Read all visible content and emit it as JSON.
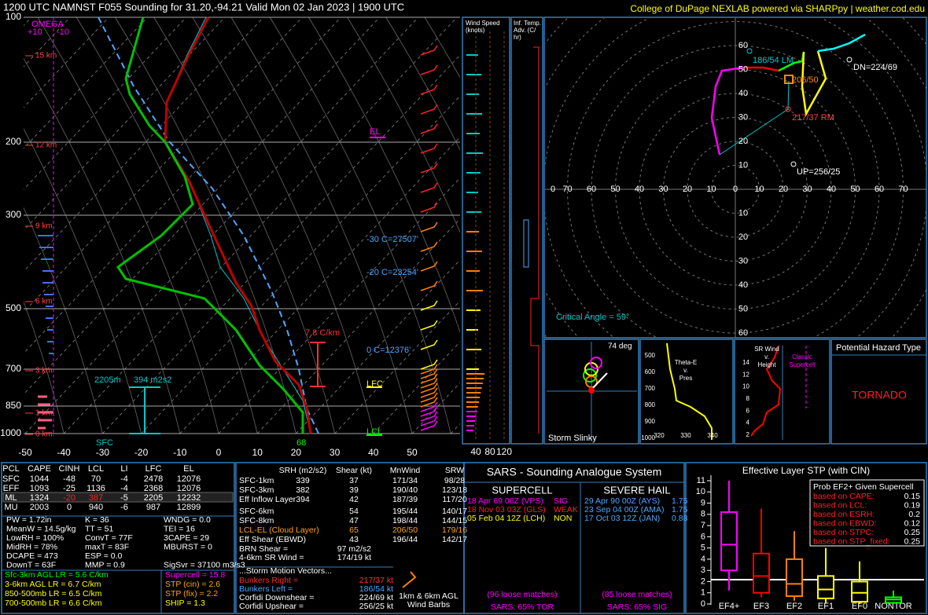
{
  "header": {
    "title": "1200 UTC NAMNST F055 Sounding for 31.20,-94.21 Valid  Mon 02 Jan 2023 | 1900 UTC",
    "credit": "College of DuPage NEXLAB powered via SHARPpy | weather.cod.edu"
  },
  "skewt": {
    "pressure_ticks": [
      "100",
      "200",
      "300",
      "500",
      "700",
      "850",
      "1000"
    ],
    "temp_ticks": [
      "-50",
      "-40",
      "-30",
      "-20",
      "-10",
      "0",
      "10",
      "20",
      "30",
      "40",
      "50"
    ],
    "height_labels": [
      "15 km",
      "12 km",
      "9 km",
      "6 km",
      "3 km",
      "1 km",
      "0 km"
    ],
    "labels": {
      "omega": "OMEGA",
      "omega_plus": "+10",
      "omega_minus": "-10",
      "el": "EL",
      "lfc": "LFC",
      "lcl": "LCL",
      "iso_m30": "-30 C=27507'",
      "iso_m20": "-20 C=23254'",
      "iso_0": "0 C=12376'",
      "max_lr": "7.8 C/km",
      "eff_base": "2205m",
      "eff_srh": "394 m2s2",
      "sfc": "SFC",
      "sfc_td": "68"
    }
  },
  "wind_panel": {
    "title": [
      "Wind Speed",
      "(knots)"
    ],
    "ticks": [
      "40",
      "80",
      "120"
    ]
  },
  "advection": {
    "title": [
      "Inf. Temp.",
      "Adv. (C/",
      "hr)"
    ]
  },
  "hodograph": {
    "rings": [
      "60",
      "50",
      "40",
      "30",
      "20",
      "10"
    ],
    "x_ticks": [
      "0",
      "70",
      "60",
      "50",
      "40",
      "30",
      "20",
      "10",
      "0",
      "10",
      "20",
      "30",
      "40",
      "50",
      "60",
      "70"
    ],
    "labels": {
      "lm": "186/54 LM",
      "mean": "206/50",
      "rm": "217/37 RM",
      "dn": "DN=224/69",
      "up": "UP=256/25",
      "critical": "Critical Angle = 59°"
    }
  },
  "slinky": {
    "angle": "74 deg",
    "title": "Storm Slinky"
  },
  "theta_e": {
    "title": [
      "Theta-E",
      "v.",
      "Pres"
    ],
    "y_ticks": [
      "500",
      "600",
      "700",
      "800",
      "900",
      "1000"
    ],
    "x_ticks": [
      "320",
      "330",
      "340"
    ]
  },
  "sr_wind": {
    "title": [
      "SR Wind",
      "v.",
      "Height"
    ],
    "note": [
      "Classic",
      "Supercell"
    ],
    "y_ticks": [
      "14",
      "12",
      "10",
      "8",
      "6",
      "4",
      "2"
    ]
  },
  "hazard": {
    "title": "Potential Hazard Type",
    "value": "TORNADO"
  },
  "thermo": {
    "header": [
      "PCL",
      "CAPE",
      "CINH",
      "LCL",
      "LI",
      "LFC",
      "EL"
    ],
    "rows": [
      [
        "SFC",
        "1044",
        "-48",
        "70",
        "-4",
        "2478",
        "12076"
      ],
      [
        "EFF",
        "1093",
        "-25",
        "1136",
        "-4",
        "2368",
        "12076"
      ],
      [
        "ML",
        "1324",
        "-20",
        "387",
        "-5",
        "2205",
        "12232"
      ],
      [
        "MU",
        "2003",
        "0",
        "940",
        "-6",
        "987",
        "12899"
      ]
    ],
    "indices": [
      [
        "PW = 1.72in",
        "K = 36",
        "WNDG = 0.0"
      ],
      [
        "MeanW = 14.5g/kg",
        "TT = 51",
        "TEI = 16"
      ],
      [
        "LowRH = 100%",
        "ConvT = 77F",
        "3CAPE = 29"
      ],
      [
        "MidRH = 78%",
        "maxT = 83F",
        "MBURST = 0"
      ],
      [
        "DCAPE = 473",
        "ESP = 0.0"
      ],
      [
        "DownT = 63F",
        "MMP = 0.9",
        "SigSvr = 37100 m3/s3"
      ]
    ],
    "lapse_rates": [
      "Sfc-3km AGL LR = 5.6 C/km",
      "3-6km AGL LR = 6.7 C/km",
      "850-500mb LR = 6.5 C/km",
      "700-500mb LR = 6.6 C/km"
    ],
    "composites": [
      "Supercell = 15.8",
      "STP (cin) = 2.6",
      "STP (fix) = 2.2",
      "SHIP = 1.3"
    ]
  },
  "kinematics": {
    "header": [
      "SRH (m2/s2)",
      "Shear (kt)",
      "MnWind",
      "SRW"
    ],
    "rows": [
      {
        "label": "SFC-1km",
        "srh": "339",
        "shear": "37",
        "mnwind": "171/34",
        "srw": "98/28"
      },
      {
        "label": "SFC-3km",
        "srh": "382",
        "shear": "39",
        "mnwind": "190/40",
        "srw": "123/18"
      },
      {
        "label": "Eff Inflow Layer",
        "srh": "394",
        "shear": "42",
        "mnwind": "187/39",
        "srw": "117/20"
      },
      {
        "label": "SFC-6km",
        "shear": "54",
        "mnwind": "195/44",
        "srw": "140/17"
      },
      {
        "label": "SFC-8km",
        "shear": "47",
        "mnwind": "198/44",
        "srw": "144/15"
      },
      {
        "label": "LCL-EL (Cloud Layer)",
        "shear": "65",
        "mnwind": "206/50",
        "srw": "179/16"
      },
      {
        "label": "Eff Shear (EBWD)",
        "shear": "43",
        "mnwind": "196/44",
        "srw": "142/17"
      }
    ],
    "extra": [
      [
        "BRN Shear =",
        "97 m2/s2"
      ],
      [
        "4-6km SR Wind =",
        "174/19 kt"
      ]
    ],
    "motion_title": "...Storm Motion Vectors...",
    "motion": [
      [
        "Bunkers Right =",
        "217/37 kt"
      ],
      [
        "Bunkers Left =",
        "186/54 kt"
      ],
      [
        "Corfidi Downshear =",
        "224/69 kt"
      ],
      [
        "Corfidi Upshear =",
        "256/25 kt"
      ]
    ],
    "barb_note": [
      "1km & 6km AGL",
      "Wind Barbs"
    ]
  },
  "sars": {
    "title": "SARS - Sounding Analogue System",
    "supercell_title": "SUPERCELL",
    "hail_title": "SEVERE HAIL",
    "supercell": [
      [
        "18 Apr 69 06Z (VPS)",
        "SIG"
      ],
      [
        "18 Nov 03 03Z (GLS)",
        "WEAK"
      ],
      [
        "05 Feb 04 12Z (LCH)",
        "NON"
      ]
    ],
    "hail": [
      [
        "29 Apr 90 00Z (AYS)",
        "1.75"
      ],
      [
        "23 Sep 04 00Z (AMA)",
        "1.75"
      ],
      [
        "17 Oct 03 12Z (JAN)",
        "0.88"
      ]
    ],
    "supercell_loose": "(96 loose matches)",
    "supercell_prob": "SARS: 65% TOR",
    "hail_loose": "(85 loose matches)",
    "hail_prob": "SARS: 65% SIG"
  },
  "stp": {
    "title": "Effective Layer STP (with CIN)",
    "yticks": [
      0,
      1,
      2,
      3,
      4,
      5,
      6,
      7,
      8,
      9,
      10,
      11
    ],
    "categories": [
      "EF4+",
      "EF3",
      "EF2",
      "EF1",
      "EF0",
      "NONTOR"
    ],
    "boxes": [
      [
        1.2,
        3.0,
        5.3,
        8.2,
        11
      ],
      [
        0.6,
        1.0,
        2.5,
        4.5,
        8.5
      ],
      [
        0.3,
        0.7,
        1.8,
        4.0,
        6.5
      ],
      [
        0.1,
        0.5,
        1.3,
        2.5,
        5.0
      ],
      [
        0,
        0.2,
        1.0,
        2.0,
        3.8
      ],
      [
        0,
        0.1,
        0.4,
        0.6,
        1.2
      ]
    ],
    "colors": [
      "#ff00ff",
      "#ff0000",
      "#ff8000",
      "#ffff00",
      "#ffff00",
      "#00ff00"
    ],
    "prob_title": "Prob EF2+ Given Supercell",
    "prob": [
      [
        "based on CAPE:",
        "0.15"
      ],
      [
        "based on LCL:",
        "0.19"
      ],
      [
        "based on ESRH:",
        "0.2"
      ],
      [
        "based on EBWD:",
        "0.12"
      ],
      [
        "based on STPC:",
        "0.25"
      ],
      [
        "based on STP_fixed:",
        "0.25"
      ]
    ]
  }
}
